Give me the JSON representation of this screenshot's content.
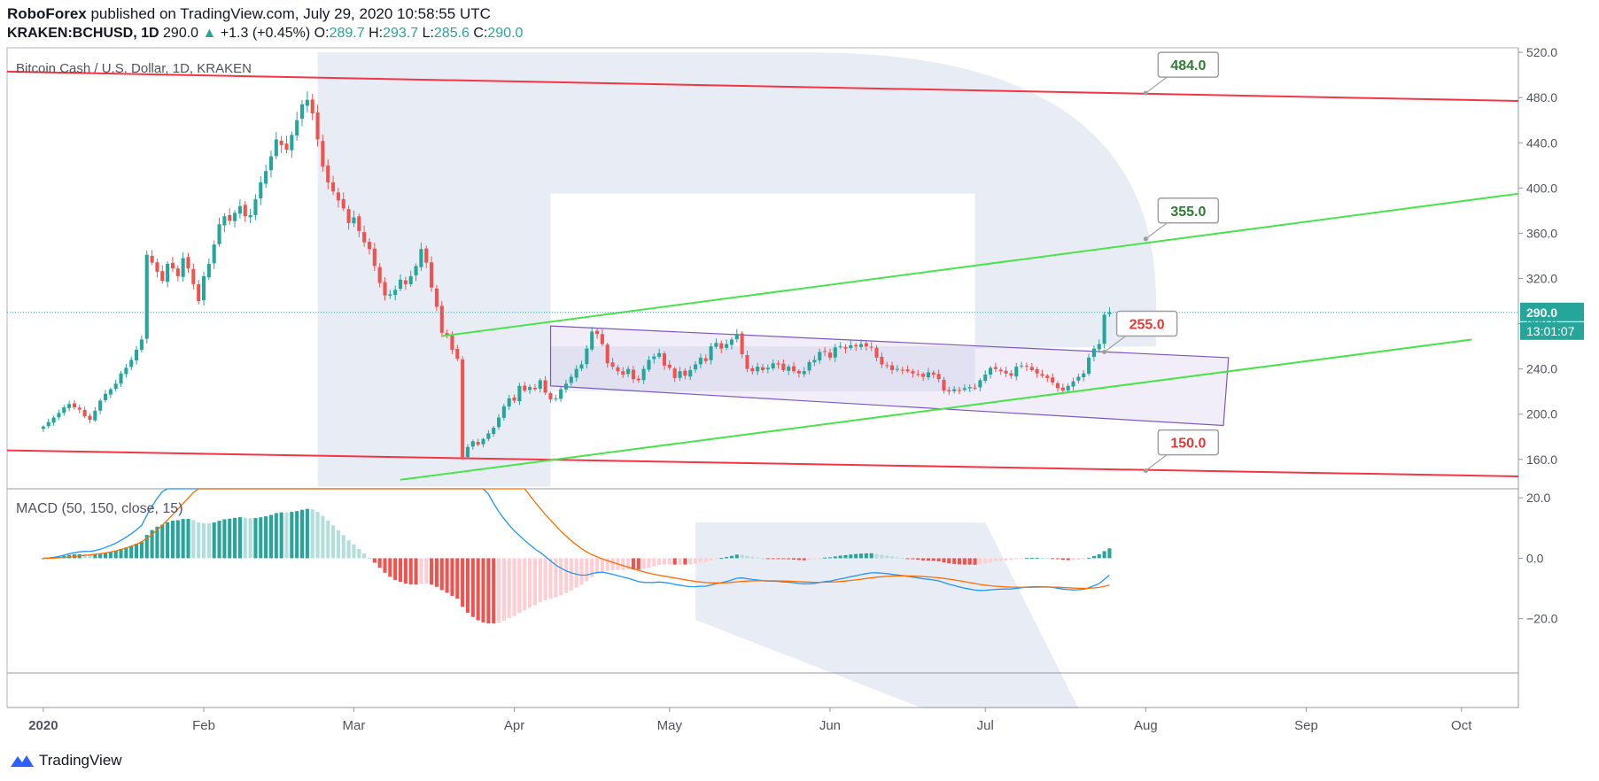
{
  "header": {
    "publisher": "RoboForex",
    "published_text": "published on TradingView.com, July 29, 2020 10:58:55 UTC",
    "symbol": "KRAKEN:BCHUSD, 1D",
    "last": "290.0",
    "change_arrow": "▲",
    "change": "+1.3 (+0.45%)",
    "o_label": "O:",
    "o": "289.7",
    "h_label": "H:",
    "h": "293.7",
    "l_label": "L:",
    "l": "285.6",
    "c_label": "C:",
    "c": "290.0"
  },
  "chart_data": {
    "type": "candlestick",
    "title": "Bitcoin Cash / U.S. Dollar, 1D, KRAKEN",
    "price_axis": {
      "ticks": [
        "520.0",
        "480.0",
        "440.0",
        "400.0",
        "360.0",
        "320.0",
        "280.0",
        "240.0",
        "200.0",
        "160.0"
      ],
      "values": [
        520,
        480,
        440,
        400,
        360,
        320,
        280,
        240,
        200,
        160
      ],
      "ylim": [
        134,
        524
      ]
    },
    "time_axis": {
      "labels": [
        "2020",
        "Feb",
        "Mar",
        "Apr",
        "May",
        "Jun",
        "Jul",
        "Aug",
        "Sep",
        "Oct"
      ],
      "label_days": [
        0,
        31,
        60,
        91,
        121,
        152,
        182,
        213,
        244,
        274
      ],
      "xlim_days": [
        -7,
        285
      ]
    },
    "current_price": {
      "label": "290.0",
      "value": 290,
      "countdown": "13:01:07"
    },
    "level_labels": [
      {
        "text": "484.0",
        "value": 484,
        "color": "#2e7d32"
      },
      {
        "text": "355.0",
        "value": 355,
        "color": "#2e7d32"
      },
      {
        "text": "255.0",
        "value": 255,
        "color": "#e53935"
      },
      {
        "text": "150.0",
        "value": 150,
        "color": "#e53935"
      }
    ],
    "trendlines": {
      "red": [
        {
          "from": [
            -7,
            503
          ],
          "to": [
            285,
            477
          ]
        },
        {
          "from": [
            -7,
            168
          ],
          "to": [
            285,
            145
          ]
        }
      ],
      "green": [
        {
          "from": [
            77,
            269
          ],
          "to": [
            285,
            395
          ]
        },
        {
          "from": [
            69,
            142
          ],
          "to": [
            276,
            266
          ]
        }
      ]
    },
    "channel": {
      "points": [
        [
          98,
          278
        ],
        [
          229,
          250
        ],
        [
          228,
          190
        ],
        [
          98,
          225
        ]
      ],
      "color": "#7e57c2"
    },
    "closes": [
      189,
      193,
      197,
      201,
      206,
      209,
      206,
      204,
      198,
      195,
      203,
      212,
      218,
      222,
      227,
      236,
      241,
      248,
      257,
      266,
      341,
      334,
      326,
      318,
      333,
      329,
      322,
      338,
      329,
      315,
      300,
      322,
      333,
      350,
      368,
      375,
      371,
      378,
      384,
      375,
      376,
      390,
      405,
      415,
      428,
      443,
      438,
      434,
      447,
      460,
      474,
      478,
      466,
      443,
      419,
      405,
      397,
      389,
      382,
      369,
      374,
      362,
      352,
      346,
      331,
      316,
      305,
      306,
      310,
      319,
      315,
      322,
      331,
      346,
      334,
      312,
      295,
      272,
      270,
      257,
      249,
      162,
      171,
      176,
      173,
      178,
      183,
      188,
      197,
      207,
      214,
      212,
      225,
      221,
      224,
      222,
      230,
      219,
      213,
      214,
      222,
      227,
      233,
      240,
      244,
      258,
      273,
      271,
      262,
      245,
      242,
      238,
      235,
      240,
      231,
      230,
      240,
      248,
      251,
      254,
      243,
      241,
      232,
      238,
      234,
      239,
      244,
      250,
      247,
      260,
      263,
      258,
      262,
      266,
      271,
      253,
      240,
      238,
      242,
      239,
      241,
      245,
      244,
      239,
      242,
      238,
      236,
      238,
      246,
      248,
      255,
      255,
      250,
      259,
      260,
      258,
      261,
      260,
      262,
      260,
      259,
      250,
      244,
      243,
      239,
      240,
      239,
      238,
      236,
      235,
      233,
      237,
      235,
      231,
      221,
      220,
      222,
      221,
      223,
      224,
      223,
      230,
      235,
      241,
      240,
      238,
      236,
      234,
      242,
      243,
      242,
      239,
      236,
      234,
      232,
      228,
      223,
      221,
      225,
      229,
      233,
      236,
      250,
      258,
      262,
      288,
      290
    ],
    "macd": {
      "label": "MACD (50, 150, close, 15)",
      "params": {
        "fast": 50,
        "slow": 150,
        "source": "close",
        "signal": 15
      },
      "ticks": [
        "20.0",
        "0.0",
        "−20.0"
      ],
      "tick_values": [
        20,
        0,
        -20
      ],
      "ylim": [
        -38,
        23
      ],
      "colors": {
        "macd": "#2196f3",
        "signal": "#ff6d00",
        "hist_up_strong": "#26a69a",
        "hist_up_weak": "#b2dfdb",
        "hist_down_strong": "#ef5350",
        "hist_down_weak": "#ffcdd2"
      }
    },
    "watermark_color": "#e8edf5"
  },
  "footer": {
    "brand": "TradingView"
  }
}
